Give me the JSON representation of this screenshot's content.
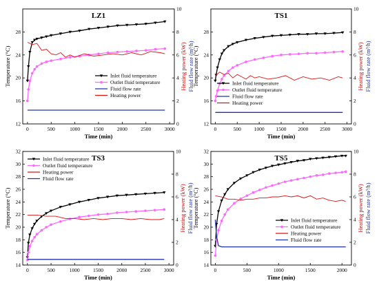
{
  "chart_data": [
    {
      "type": "line",
      "title": "LZ1",
      "xlabel": "Time (min)",
      "ylabel": "Temperature (°C)",
      "y2label_power": "Heating power (kW)",
      "y2label_flow": "Fluid flow rate (m³/h)",
      "xlim": [
        -100,
        3100
      ],
      "xticks": [
        0,
        500,
        1000,
        1500,
        2000,
        2500,
        3000
      ],
      "ylim": [
        12,
        32
      ],
      "yticks": [
        12,
        16,
        20,
        24,
        28
      ],
      "y2lim": [
        0,
        10
      ],
      "y2ticks": [
        0,
        2,
        4,
        6,
        8,
        10
      ],
      "legend_position": "right",
      "legend": [
        "Inlet fluid temperature",
        "Outlet fluid temperature",
        "Fluid flow rate",
        "Heating power"
      ],
      "series": [
        {
          "name": "Inlet fluid temperature",
          "axis": "left",
          "color": "#000000",
          "marker": "triangle-down",
          "x": [
            0,
            20,
            50,
            100,
            150,
            200,
            300,
            400,
            500,
            700,
            900,
            1100,
            1300,
            1500,
            1700,
            1900,
            2100,
            2300,
            2500,
            2700,
            2900
          ],
          "y": [
            19.5,
            22,
            24.5,
            26.2,
            26.6,
            26.8,
            27,
            27.2,
            27.4,
            27.7,
            28,
            28.2,
            28.5,
            28.7,
            28.9,
            29.1,
            29.2,
            29.3,
            29.4,
            29.6,
            29.8
          ]
        },
        {
          "name": "Outlet fluid temperature",
          "axis": "left",
          "color": "#ff66ff",
          "marker": "circle",
          "x": [
            0,
            20,
            50,
            100,
            150,
            200,
            300,
            400,
            500,
            700,
            900,
            1100,
            1300,
            1500,
            1700,
            1900,
            2100,
            2300,
            2500,
            2700,
            2900
          ],
          "y": [
            16,
            18,
            19.5,
            20.8,
            21.5,
            22,
            22.5,
            22.8,
            23,
            23.3,
            23.6,
            23.8,
            24,
            24.2,
            24.4,
            24.5,
            24.6,
            24.7,
            24.8,
            25,
            25.1
          ]
        },
        {
          "name": "Fluid flow rate",
          "axis": "right",
          "color": "#2233aa",
          "x": [
            0,
            2900
          ],
          "y": [
            1.2,
            1.2
          ]
        },
        {
          "name": "Heating power",
          "axis": "right",
          "color": "#dd1111",
          "x": [
            0,
            100,
            200,
            300,
            400,
            500,
            600,
            700,
            800,
            900,
            1000,
            1200,
            1400,
            1600,
            1800,
            2000,
            2200,
            2400,
            2600,
            2800,
            2900
          ],
          "y": [
            7.1,
            6.9,
            7.0,
            6.4,
            6.5,
            6.1,
            6.0,
            6.2,
            5.8,
            6.0,
            5.8,
            6.1,
            5.9,
            6.0,
            6.1,
            6.0,
            6.2,
            6.0,
            6.3,
            6.2,
            6.1
          ]
        }
      ]
    },
    {
      "type": "line",
      "title": "TS1",
      "xlabel": "Time (min)",
      "ylabel": "Temperature (°C)",
      "y2label_power": "Heating power (kW)",
      "y2label_flow": "Fluid flow rate (m³/h)",
      "xlim": [
        -100,
        3100
      ],
      "xticks": [
        0,
        500,
        1000,
        1500,
        2000,
        2500,
        3000
      ],
      "ylim": [
        12,
        32
      ],
      "yticks": [
        12,
        16,
        20,
        24,
        28
      ],
      "y2lim": [
        0,
        10
      ],
      "y2ticks": [
        0,
        2,
        4,
        6,
        8,
        10
      ],
      "legend_position": "bottom-right",
      "legend": [
        "Inlet fluid temperature",
        "Outlet fluid temperature",
        "Fluid flow rate",
        "Heating power"
      ],
      "series": [
        {
          "name": "Inlet fluid temperature",
          "axis": "left",
          "color": "#000000",
          "marker": "triangle-down",
          "x": [
            0,
            20,
            50,
            100,
            150,
            200,
            300,
            400,
            500,
            700,
            900,
            1100,
            1300,
            1500,
            1700,
            1900,
            2100,
            2300,
            2500,
            2700,
            2900
          ],
          "y": [
            19.5,
            20.5,
            21.8,
            23.2,
            24.2,
            24.8,
            25.5,
            25.9,
            26.2,
            26.6,
            26.9,
            27.1,
            27.3,
            27.4,
            27.5,
            27.6,
            27.6,
            27.7,
            27.7,
            27.8,
            27.9
          ]
        },
        {
          "name": "Outlet fluid temperature",
          "axis": "left",
          "color": "#ff66ff",
          "marker": "circle",
          "x": [
            0,
            20,
            50,
            100,
            150,
            200,
            300,
            400,
            500,
            700,
            900,
            1100,
            1300,
            1500,
            1700,
            1900,
            2100,
            2300,
            2500,
            2700,
            2900
          ],
          "y": [
            16,
            16.8,
            17.8,
            19,
            19.8,
            20.4,
            21.2,
            21.8,
            22.2,
            22.8,
            23.2,
            23.5,
            23.8,
            24,
            24.1,
            24.2,
            24.3,
            24.3,
            24.4,
            24.5,
            24.6
          ]
        },
        {
          "name": "Fluid flow rate",
          "axis": "right",
          "color": "#2233aa",
          "x": [
            0,
            2900
          ],
          "y": [
            1.0,
            1.0
          ]
        },
        {
          "name": "Heating power",
          "axis": "right",
          "color": "#dd1111",
          "x": [
            0,
            100,
            200,
            300,
            400,
            500,
            600,
            700,
            800,
            900,
            1000,
            1200,
            1400,
            1600,
            1800,
            2000,
            2200,
            2400,
            2600,
            2800,
            2900
          ],
          "y": [
            4.2,
            4.5,
            4.3,
            4.4,
            4.0,
            4.3,
            4.1,
            3.9,
            4.2,
            4.0,
            4.1,
            3.9,
            4.0,
            4.2,
            3.8,
            4.1,
            3.9,
            4.0,
            3.8,
            4.1,
            4.0
          ]
        }
      ]
    },
    {
      "type": "line",
      "title": "TS3",
      "xlabel": "Time (min)",
      "ylabel": "Temperature (°C)",
      "y2label_power": "Heating power (kW)",
      "y2label_flow": "Fluid flow rate (m³/h)",
      "xlim": [
        -100,
        3100
      ],
      "xticks": [
        0,
        500,
        1000,
        1500,
        2000,
        2500,
        3000
      ],
      "ylim": [
        14,
        32
      ],
      "yticks": [
        14,
        16,
        18,
        20,
        22,
        24,
        26,
        28,
        30,
        32
      ],
      "y2lim": [
        0,
        10
      ],
      "y2ticks": [
        0,
        2,
        4,
        6,
        8,
        10
      ],
      "legend_position": "top-left",
      "legend": [
        "Inlet fluid temperature",
        "Outlet fluid temperature",
        "Heating power",
        "Fluid flow rate"
      ],
      "series": [
        {
          "name": "Inlet fluid temperature",
          "axis": "left",
          "color": "#000000",
          "marker": "triangle-down",
          "x": [
            0,
            20,
            50,
            100,
            150,
            200,
            300,
            400,
            500,
            700,
            900,
            1100,
            1300,
            1500,
            1700,
            1900,
            2100,
            2300,
            2500,
            2700,
            2900
          ],
          "y": [
            15.2,
            17.5,
            18.8,
            19.8,
            20.5,
            21,
            21.7,
            22.2,
            22.6,
            23.2,
            23.6,
            24,
            24.3,
            24.6,
            24.8,
            25,
            25.1,
            25.2,
            25.3,
            25.4,
            25.5
          ]
        },
        {
          "name": "Outlet fluid temperature",
          "axis": "left",
          "color": "#ff66ff",
          "marker": "circle",
          "x": [
            0,
            20,
            50,
            100,
            150,
            200,
            300,
            400,
            500,
            700,
            900,
            1100,
            1300,
            1500,
            1700,
            1900,
            2100,
            2300,
            2500,
            2700,
            2900
          ],
          "y": [
            14.8,
            16,
            17,
            17.8,
            18.4,
            18.9,
            19.5,
            20,
            20.4,
            20.9,
            21.3,
            21.6,
            21.8,
            22,
            22.1,
            22.3,
            22.4,
            22.5,
            22.6,
            22.7,
            22.8
          ]
        },
        {
          "name": "Heating power",
          "axis": "right",
          "color": "#dd1111",
          "x": [
            0,
            200,
            400,
            600,
            800,
            1000,
            1200,
            1400,
            1600,
            1800,
            2000,
            2200,
            2400,
            2600,
            2800,
            2900
          ],
          "y": [
            4.4,
            4.4,
            4.3,
            4.3,
            4.1,
            4.1,
            4.0,
            4.1,
            4.0,
            4.1,
            4.1,
            4.0,
            4.1,
            4.0,
            4.0,
            4.1
          ]
        },
        {
          "name": "Fluid flow rate",
          "axis": "right",
          "color": "#2233aa",
          "x": [
            0,
            2900
          ],
          "y": [
            0.5,
            0.5
          ]
        }
      ]
    },
    {
      "type": "line",
      "title": "TS5",
      "xlabel": "Time (min)",
      "ylabel": "Temperature (°C)",
      "y2label_power": "Heating power (kW)",
      "y2label_flow": "Fluid flow rate (m³/h)",
      "xlim": [
        -70,
        2150
      ],
      "xticks": [
        0,
        500,
        1000,
        1500,
        2000
      ],
      "ylim": [
        14,
        32
      ],
      "yticks": [
        14,
        16,
        18,
        20,
        22,
        24,
        26,
        28,
        30,
        32
      ],
      "y2lim": [
        0,
        10
      ],
      "y2ticks": [
        0,
        2,
        4,
        6,
        8,
        10
      ],
      "legend_position": "bottom-right",
      "legend": [
        "Inlet fluid temperature",
        "Outlet fluid temperature",
        "Heating power",
        "Fluid flow rate"
      ],
      "series": [
        {
          "name": "Inlet fluid temperature",
          "axis": "left",
          "color": "#000000",
          "marker": "triangle-down",
          "x": [
            0,
            20,
            50,
            100,
            150,
            200,
            300,
            400,
            500,
            600,
            700,
            800,
            900,
            1000,
            1100,
            1200,
            1300,
            1400,
            1500,
            1600,
            1700,
            1800,
            1900,
            2000,
            2060
          ],
          "y": [
            17,
            20.5,
            22.5,
            24.2,
            25.2,
            26,
            27,
            27.7,
            28.2,
            28.7,
            29.1,
            29.4,
            29.7,
            29.9,
            30.1,
            30.3,
            30.5,
            30.6,
            30.8,
            30.9,
            31,
            31.1,
            31.2,
            31.3,
            31.3
          ]
        },
        {
          "name": "Outlet fluid temperature",
          "axis": "left",
          "color": "#ff66ff",
          "marker": "circle",
          "x": [
            0,
            20,
            50,
            100,
            150,
            200,
            300,
            400,
            500,
            600,
            700,
            800,
            900,
            1000,
            1100,
            1200,
            1300,
            1400,
            1500,
            1600,
            1700,
            1800,
            1900,
            2000,
            2060
          ],
          "y": [
            15.5,
            18,
            19.5,
            21,
            22,
            22.8,
            23.8,
            24.5,
            25,
            25.5,
            25.9,
            26.3,
            26.6,
            26.9,
            27.2,
            27.4,
            27.6,
            27.8,
            28,
            28.2,
            28.3,
            28.5,
            28.6,
            28.7,
            28.8
          ]
        },
        {
          "name": "Heating power",
          "axis": "right",
          "color": "#dd1111",
          "x": [
            0,
            100,
            200,
            300,
            400,
            500,
            600,
            700,
            800,
            900,
            1000,
            1100,
            1200,
            1300,
            1400,
            1500,
            1600,
            1700,
            1800,
            1900,
            2000,
            2060
          ],
          "y": [
            6.1,
            6.0,
            5.8,
            5.8,
            5.7,
            5.8,
            5.8,
            5.9,
            5.9,
            6.0,
            6.0,
            6.1,
            6.0,
            6.1,
            5.9,
            6.1,
            5.8,
            5.9,
            5.7,
            5.6,
            5.7,
            5.6
          ]
        },
        {
          "name": "Fluid flow rate",
          "axis": "right",
          "color": "#2233aa",
          "x": [
            0,
            20,
            50,
            100,
            2060
          ],
          "y": [
            4.0,
            2.5,
            1.7,
            1.6,
            1.6
          ]
        }
      ]
    }
  ]
}
